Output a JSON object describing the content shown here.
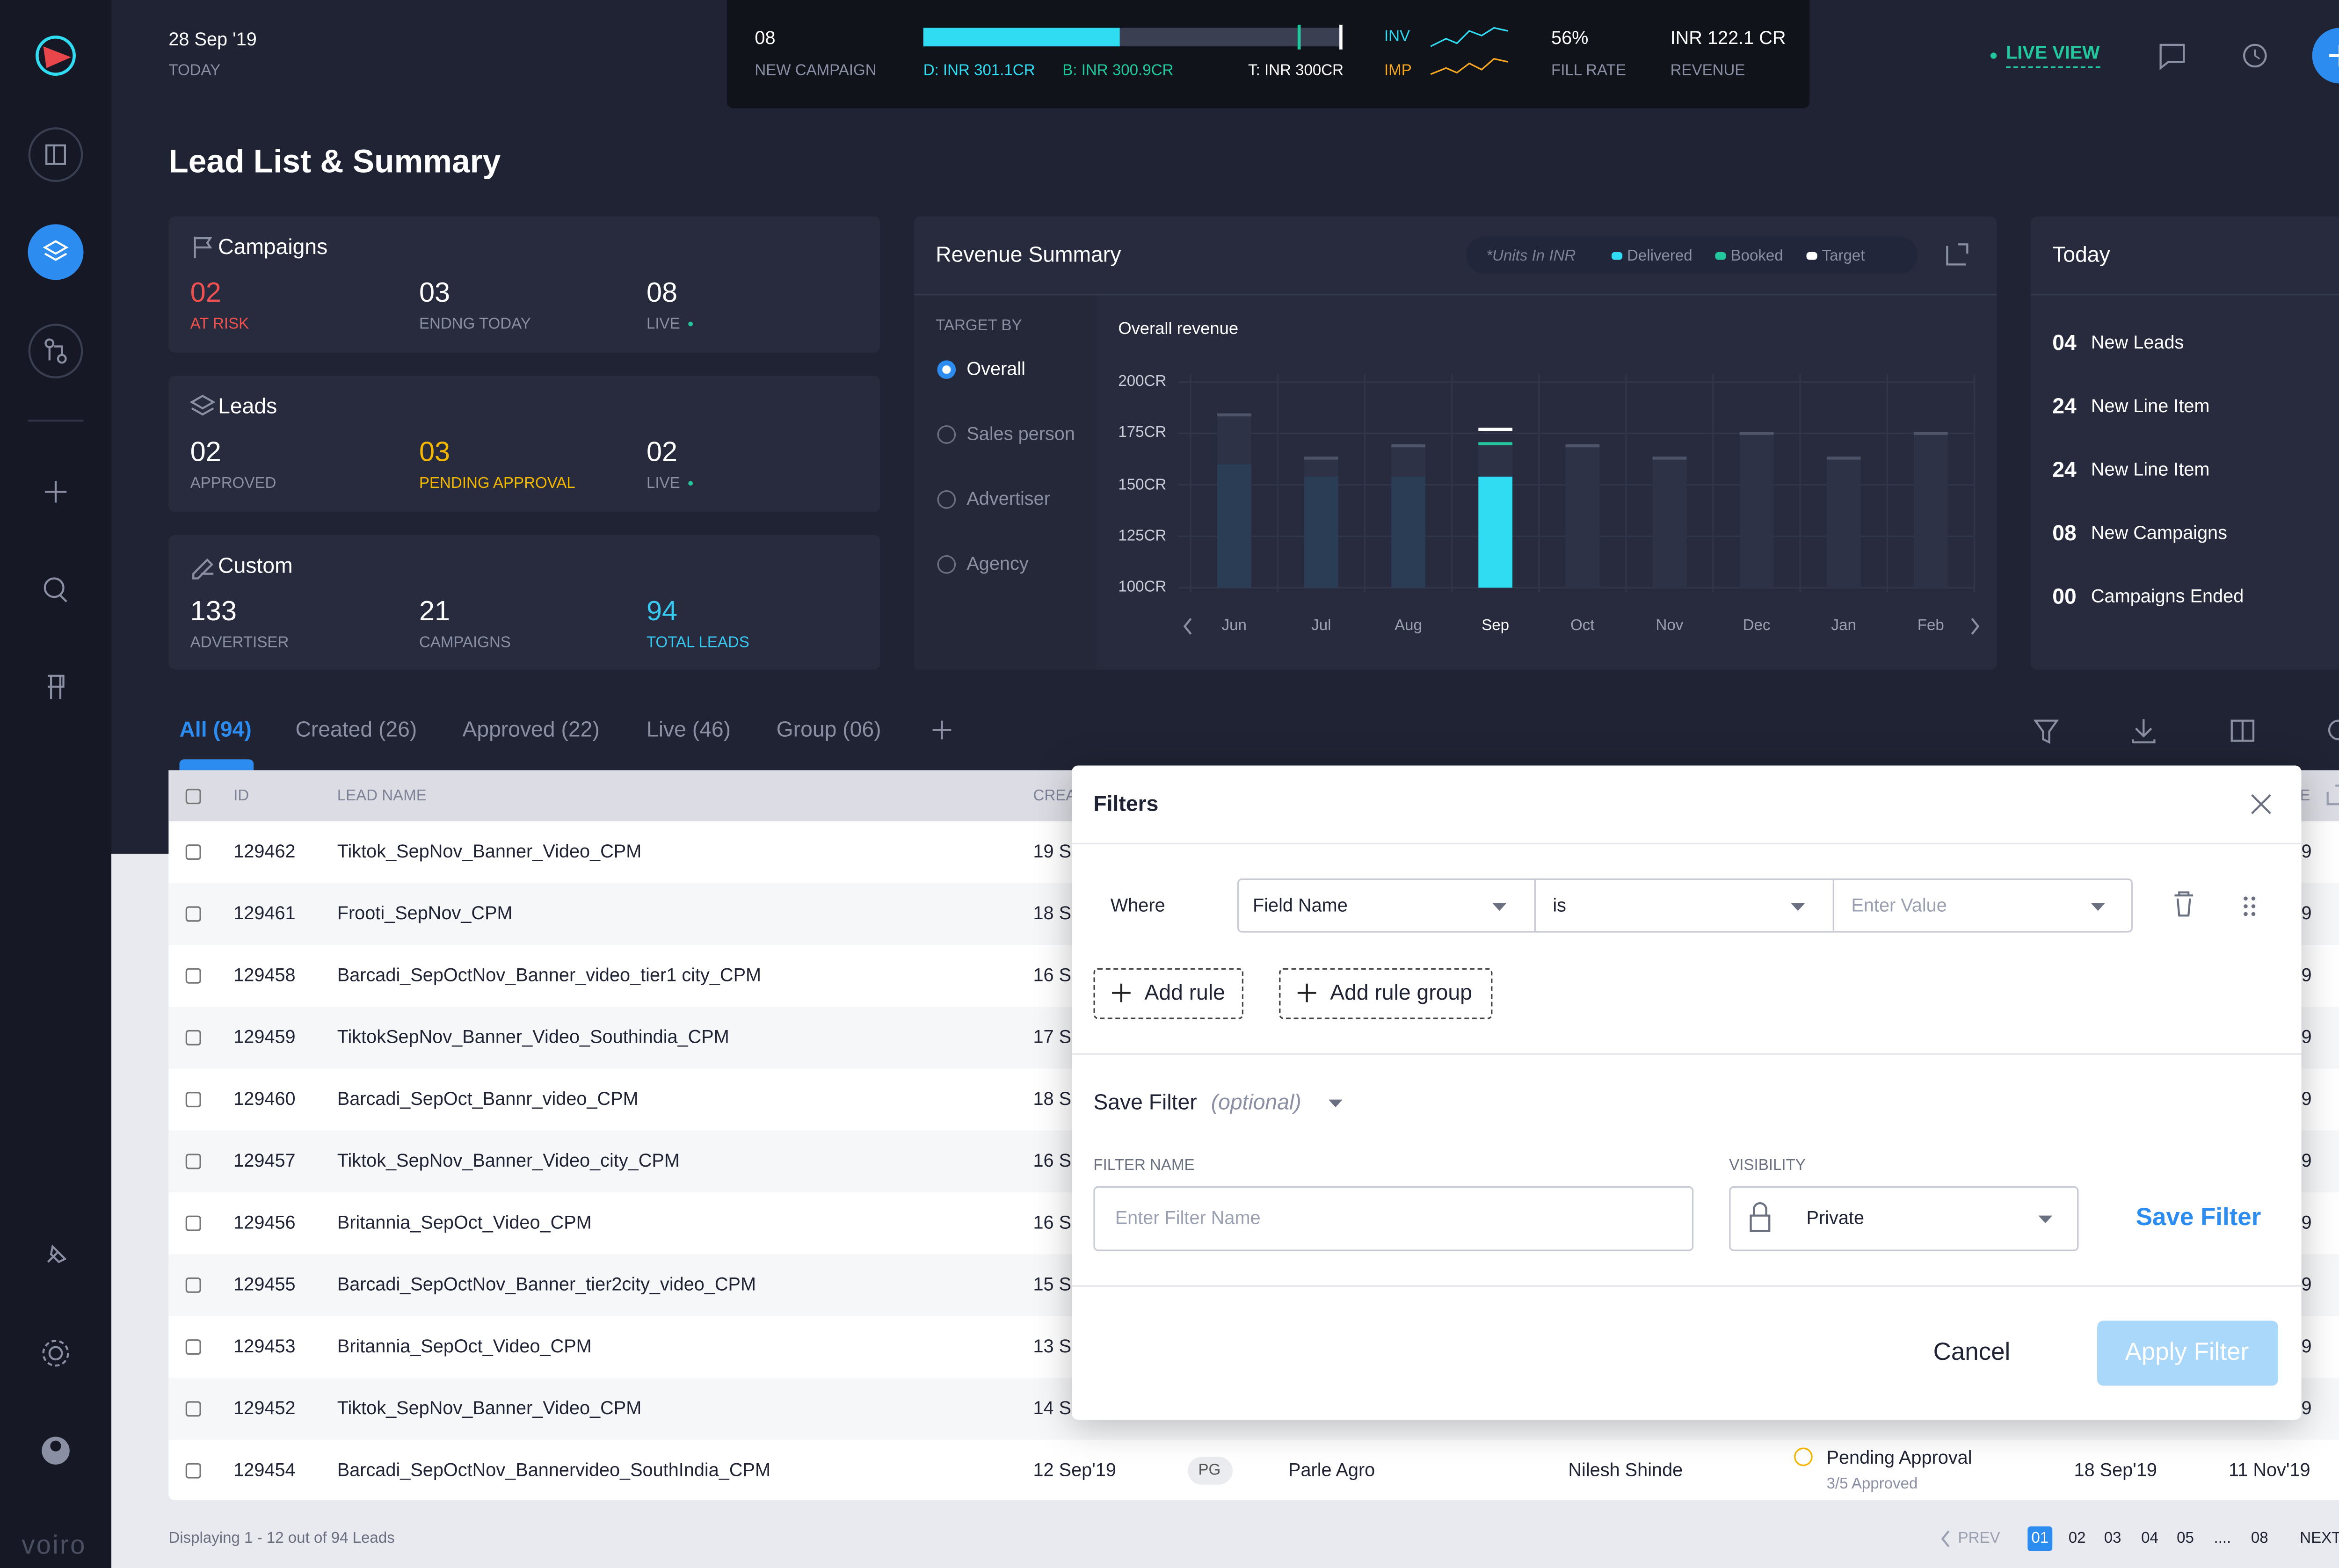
{
  "sidebar": {
    "brand": "voiro"
  },
  "topbar": {
    "date": "28 Sep '19",
    "date_label": "TODAY",
    "new_campaign": {
      "value": "08",
      "label": "NEW CAMPAIGN"
    },
    "delivered": "D: INR 301.1CR",
    "booked": "B: INR 300.9CR",
    "target": "T: INR 300CR",
    "inv": "INV",
    "imp": "IMP",
    "fill_rate": {
      "value": "56%",
      "label": "FILL RATE"
    },
    "revenue": {
      "value": "INR 122.1 CR",
      "label": "REVENUE"
    },
    "live_view": "LIVE VIEW"
  },
  "page_title": "Lead List & Summary",
  "summary_cards": [
    {
      "title": "Campaigns",
      "stats": [
        {
          "value": "02",
          "label": "AT RISK",
          "tone": "risk"
        },
        {
          "value": "03",
          "label": "ENDNG TODAY",
          "tone": "plain"
        },
        {
          "value": "08",
          "label": "LIVE",
          "tone": "live"
        }
      ]
    },
    {
      "title": "Leads",
      "stats": [
        {
          "value": "02",
          "label": "APPROVED",
          "tone": "plain"
        },
        {
          "value": "03",
          "label": "PENDING APPROVAL",
          "tone": "warn"
        },
        {
          "value": "02",
          "label": "LIVE",
          "tone": "live"
        }
      ]
    },
    {
      "title": "Custom",
      "stats": [
        {
          "value": "133",
          "label": "ADVERTISER",
          "tone": "plain"
        },
        {
          "value": "21",
          "label": "CAMPAIGNS",
          "tone": "plain"
        },
        {
          "value": "94",
          "label": "TOTAL LEADS",
          "tone": "info"
        }
      ]
    }
  ],
  "revenue_summary": {
    "title": "Revenue Summary",
    "units_note": "*Units In INR",
    "target_by": {
      "label": "TARGET BY",
      "options": [
        "Overall",
        "Sales person",
        "Advertiser",
        "Agency"
      ],
      "selected": 0
    },
    "chart_data": {
      "type": "bar",
      "title": "Overall revenue",
      "categories": [
        "Jun",
        "Jul",
        "Aug",
        "Sep",
        "Oct",
        "Nov",
        "Dec",
        "Jan",
        "Feb"
      ],
      "series": [
        {
          "name": "Delivered",
          "color": "#2fdcf2",
          "values": [
            160,
            154,
            154,
            154,
            null,
            null,
            null,
            null,
            null
          ]
        },
        {
          "name": "Booked",
          "color": "#22c79e",
          "values": [
            184,
            163,
            169,
            170,
            169,
            163,
            175,
            163,
            175
          ]
        },
        {
          "name": "Target",
          "color": "#ffffff",
          "values": [
            null,
            null,
            null,
            177,
            null,
            null,
            null,
            null,
            null
          ]
        }
      ],
      "ylim": [
        100,
        200
      ],
      "yticks": [
        {
          "value": 100,
          "label": "100CR"
        },
        {
          "value": 125,
          "label": "125CR"
        },
        {
          "value": 150,
          "label": "150CR"
        },
        {
          "value": 175,
          "label": "175CR"
        },
        {
          "value": 200,
          "label": "200CR"
        }
      ],
      "selected_index": 3,
      "grid": true
    }
  },
  "today": {
    "title": "Today",
    "items": [
      {
        "value": "04",
        "label": "New Leads"
      },
      {
        "value": "24",
        "label": "New Line Item"
      },
      {
        "value": "24",
        "label": "New Line Item"
      },
      {
        "value": "08",
        "label": "New Campaigns"
      },
      {
        "value": "00",
        "label": "Campaigns Ended"
      }
    ]
  },
  "tabs": {
    "items": [
      "All (94)",
      "Created (26)",
      "Approved (22)",
      "Live (46)",
      "Group (06)"
    ],
    "active": 0
  },
  "table": {
    "header": [
      "ID",
      "LEAD NAME",
      "CREA"
    ],
    "header_tail": "E",
    "rows": [
      {
        "id": "129462",
        "name": "Tiktok_SepNov_Banner_Video_CPM",
        "created": "19 S",
        "end": "9"
      },
      {
        "id": "129461",
        "name": "Frooti_SepNov_CPM",
        "created": "18 S",
        "end": "9"
      },
      {
        "id": "129458",
        "name": "Barcadi_SepOctNov_Banner_video_tier1 city_CPM",
        "created": "16 S",
        "end": "9"
      },
      {
        "id": "129459",
        "name": "TiktokSepNov_Banner_Video_Southindia_CPM",
        "created": "17 S",
        "end": "9"
      },
      {
        "id": "129460",
        "name": "Barcadi_SepOct_Bannr_video_CPM",
        "created": "18 S",
        "end": "9"
      },
      {
        "id": "129457",
        "name": "Tiktok_SepNov_Banner_Video_city_CPM",
        "created": "16 S",
        "end": "9"
      },
      {
        "id": "129456",
        "name": "Britannia_SepOct_Video_CPM",
        "created": "16 S",
        "end": "9"
      },
      {
        "id": "129455",
        "name": "Barcadi_SepOctNov_Banner_tier2city_video_CPM",
        "created": "15 S",
        "end": "9"
      },
      {
        "id": "129453",
        "name": "Britannia_SepOct_Video_CPM",
        "created": "13 S",
        "end": "9"
      },
      {
        "id": "129452",
        "name": "Tiktok_SepNov_Banner_Video_CPM",
        "created": "14 S",
        "end": "9"
      },
      {
        "id": "129454",
        "name": "Barcadi_SepOctNov_Bannervideo_SouthIndia_CPM",
        "created": "12 Sep'19",
        "deal": "PG",
        "advertiser": "Parle Agro",
        "owner": "Nilesh Shinde",
        "status": "Pending Approval",
        "status_note": "3/5 Approved",
        "start": "18 Sep'19",
        "end": "11 Nov'19"
      }
    ]
  },
  "footer": {
    "displaying": "Displaying 1 - 12 out of 94 Leads",
    "prev": "PREV",
    "pages": [
      "01",
      "02",
      "03",
      "04",
      "05",
      "....",
      "08"
    ],
    "active": 0,
    "next": "NEXT"
  },
  "filters_modal": {
    "title": "Filters",
    "where": "Where",
    "field": "Field Name",
    "operator": "is",
    "value_placeholder": "Enter Value",
    "add_rule": "Add rule",
    "add_rule_group": "Add rule group",
    "save_filter": "Save Filter",
    "optional": "(optional)",
    "filter_name_label": "FILTER NAME",
    "filter_name_placeholder": "Enter Filter Name",
    "visibility_label": "VISIBILITY",
    "visibility": "Private",
    "save_button": "Save Filter",
    "cancel": "Cancel",
    "apply": "Apply Filter"
  }
}
